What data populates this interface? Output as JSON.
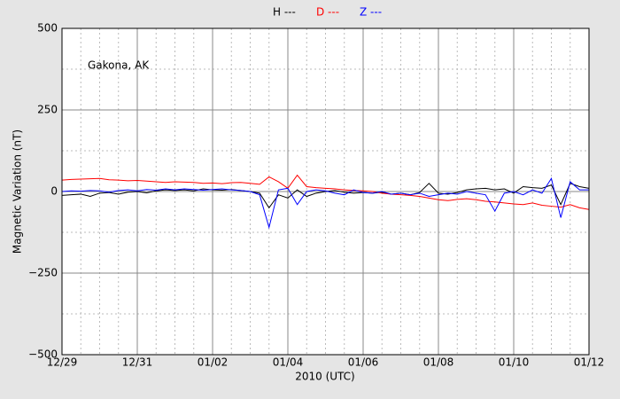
{
  "chart_data": {
    "type": "line",
    "annotation": "Gakona, AK",
    "xlabel": "2010 (UTC)",
    "ylabel": "Magnetic Variation (nT)",
    "x": [
      0,
      0.25,
      0.5,
      0.75,
      1,
      1.25,
      1.5,
      1.75,
      2,
      2.25,
      2.5,
      2.75,
      3,
      3.25,
      3.5,
      3.75,
      4,
      4.25,
      4.5,
      4.75,
      5,
      5.25,
      5.5,
      5.75,
      6,
      6.25,
      6.5,
      6.75,
      7,
      7.25,
      7.5,
      7.75,
      8,
      8.25,
      8.5,
      8.75,
      9,
      9.25,
      9.5,
      9.75,
      10,
      10.25,
      10.5,
      10.75,
      11,
      11.25,
      11.5,
      11.75,
      12,
      12.25,
      12.5,
      12.75,
      13,
      13.25,
      13.5,
      13.75,
      14
    ],
    "series": [
      {
        "name": "H ---",
        "color": "#000000",
        "values": [
          -12,
          -10,
          -8,
          -15,
          -5,
          -3,
          -8,
          -2,
          0,
          -4,
          2,
          5,
          3,
          5,
          2,
          8,
          5,
          4,
          6,
          3,
          0,
          -5,
          -50,
          -10,
          -20,
          5,
          -15,
          -5,
          0,
          3,
          -2,
          -5,
          -3,
          -5,
          -2,
          -8,
          -5,
          -10,
          -3,
          25,
          -5,
          -8,
          -3,
          5,
          8,
          10,
          5,
          8,
          -5,
          15,
          12,
          10,
          20,
          -40,
          25,
          15,
          10
        ]
      },
      {
        "name": "D ---",
        "color": "#ff0000",
        "values": [
          35,
          37,
          38,
          39,
          40,
          36,
          35,
          33,
          34,
          32,
          30,
          28,
          30,
          29,
          28,
          25,
          26,
          24,
          27,
          28,
          25,
          22,
          45,
          30,
          10,
          50,
          15,
          12,
          10,
          8,
          5,
          3,
          2,
          0,
          -5,
          -8,
          -10,
          -12,
          -15,
          -20,
          -25,
          -28,
          -24,
          -22,
          -25,
          -30,
          -32,
          -35,
          -38,
          -40,
          -35,
          -42,
          -45,
          -48,
          -40,
          -50,
          -55
        ]
      },
      {
        "name": "Z ---",
        "color": "#0000ff",
        "values": [
          0,
          2,
          1,
          3,
          2,
          -2,
          3,
          5,
          2,
          6,
          4,
          8,
          5,
          8,
          6,
          4,
          6,
          8,
          5,
          3,
          0,
          -10,
          -110,
          5,
          10,
          -40,
          0,
          5,
          2,
          -5,
          -10,
          5,
          -3,
          -5,
          0,
          -8,
          -5,
          -10,
          -5,
          -15,
          -10,
          -5,
          -8,
          0,
          -5,
          -10,
          -60,
          -5,
          0,
          -10,
          5,
          -5,
          40,
          -80,
          30,
          5,
          5
        ]
      }
    ],
    "xlim": [
      0,
      14
    ],
    "xticks": [
      {
        "value": 0,
        "label": "12/29"
      },
      {
        "value": 2,
        "label": "12/31"
      },
      {
        "value": 4,
        "label": "01/02"
      },
      {
        "value": 6,
        "label": "01/04"
      },
      {
        "value": 8,
        "label": "01/06"
      },
      {
        "value": 10,
        "label": "01/08"
      },
      {
        "value": 12,
        "label": "01/10"
      },
      {
        "value": 14,
        "label": "01/12"
      }
    ],
    "minor_xticks": [
      0.5,
      1,
      1.5,
      2.5,
      3,
      3.5,
      4.5,
      5,
      5.5,
      6.5,
      7,
      7.5,
      8.5,
      9,
      9.5,
      10.5,
      11,
      11.5,
      12.5,
      13,
      13.5
    ],
    "ylim": [
      -500,
      500
    ],
    "yticks": [
      {
        "value": -500,
        "label": "−500"
      },
      {
        "value": -250,
        "label": "−250"
      },
      0,
      250,
      500
    ],
    "minor_yticks": [
      -375,
      -125,
      125,
      375
    ],
    "grid": true
  }
}
